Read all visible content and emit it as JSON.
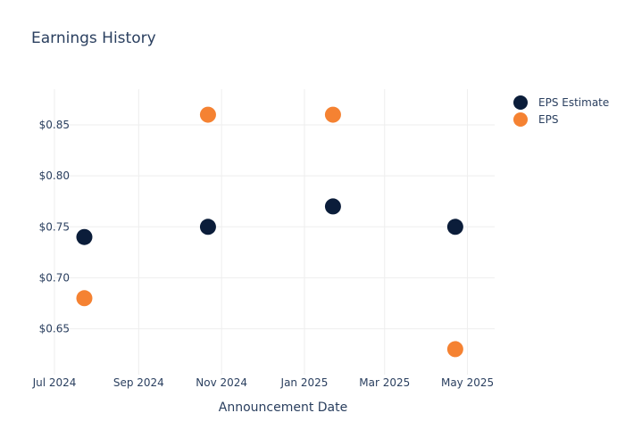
{
  "chart_data": {
    "type": "scatter",
    "title": "Earnings History",
    "xlabel": "Announcement Date",
    "ylabel": "",
    "x_tick_labels": [
      {
        "date": "2024-07-01",
        "label": "Jul 2024"
      },
      {
        "date": "2024-09-01",
        "label": "Sep 2024"
      },
      {
        "date": "2024-11-01",
        "label": "Nov 2024"
      },
      {
        "date": "2025-01-01",
        "label": "Jan 2025"
      },
      {
        "date": "2025-03-01",
        "label": "Mar 2025"
      },
      {
        "date": "2025-05-01",
        "label": "May 2025"
      }
    ],
    "y_tick_labels": [
      {
        "value": 0.65,
        "label": "$0.65"
      },
      {
        "value": 0.7,
        "label": "$0.70"
      },
      {
        "value": 0.75,
        "label": "$0.75"
      },
      {
        "value": 0.8,
        "label": "$0.80"
      },
      {
        "value": 0.85,
        "label": "$0.85"
      }
    ],
    "xlim": [
      "2024-07-01",
      "2025-05-21"
    ],
    "ylim": [
      0.605,
      0.885
    ],
    "grid": true,
    "legend_position": "top-right",
    "series": [
      {
        "name": "EPS Estimate",
        "color": "#0b1d3a",
        "points": [
          {
            "x": "2024-07-23",
            "y": 0.74
          },
          {
            "x": "2024-10-22",
            "y": 0.75
          },
          {
            "x": "2025-01-22",
            "y": 0.77
          },
          {
            "x": "2025-04-22",
            "y": 0.75
          }
        ]
      },
      {
        "name": "EPS",
        "color": "#f58232",
        "points": [
          {
            "x": "2024-07-23",
            "y": 0.68
          },
          {
            "x": "2024-10-22",
            "y": 0.86
          },
          {
            "x": "2025-01-22",
            "y": 0.86
          },
          {
            "x": "2025-04-22",
            "y": 0.63
          }
        ]
      }
    ]
  }
}
